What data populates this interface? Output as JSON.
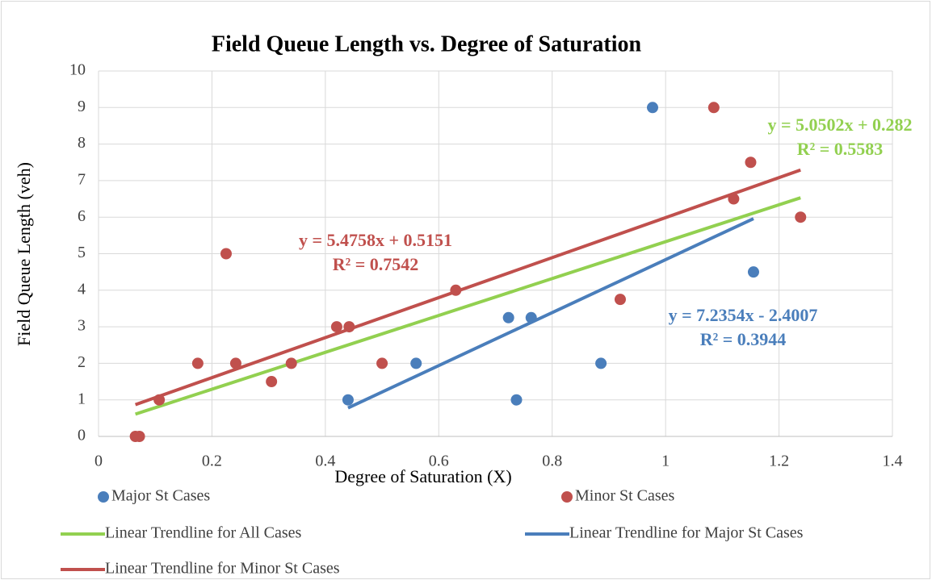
{
  "chart_data": {
    "type": "scatter",
    "title": "Field Queue Length vs. Degree of Saturation",
    "x_label": "Degree of Saturation (X)",
    "y_label": "Field Queue Length (veh)",
    "xlim": [
      0,
      1.4
    ],
    "ylim": [
      0,
      10
    ],
    "xticks": [
      0,
      0.2,
      0.4,
      0.6,
      0.8,
      1,
      1.2,
      1.4
    ],
    "yticks": [
      0,
      1,
      2,
      3,
      4,
      5,
      6,
      7,
      8,
      9,
      10
    ],
    "grid": true,
    "series": [
      {
        "name": "Major St Cases",
        "type": "scatter",
        "color": "#4a7ebb",
        "x": [
          0.44,
          0.56,
          0.723,
          0.763,
          0.737,
          0.886,
          0.977,
          1.155
        ],
        "values": [
          1,
          2,
          3.25,
          3.25,
          1,
          2,
          9,
          4.5
        ]
      },
      {
        "name": "Minor St Cases",
        "type": "scatter",
        "color": "#c0504d",
        "x": [
          0.065,
          0.072,
          0.107,
          0.175,
          0.225,
          0.242,
          0.305,
          0.34,
          0.42,
          0.442,
          0.5,
          0.63,
          0.92,
          1.085,
          1.12,
          1.15,
          1.238
        ],
        "values": [
          0,
          0,
          1,
          2,
          5,
          2,
          1.5,
          2,
          3,
          3,
          2,
          4,
          3.75,
          9,
          6.5,
          7.5,
          6
        ]
      },
      {
        "name": "Linear Trendline for All Cases",
        "type": "line",
        "color": "#92d050",
        "x": [
          0.065,
          1.238
        ],
        "values": [
          0.61,
          6.53
        ]
      },
      {
        "name": "Linear Trendline for Major St Cases",
        "type": "line",
        "color": "#4a7ebb",
        "x": [
          0.44,
          1.155
        ],
        "values": [
          0.78,
          5.96
        ]
      },
      {
        "name": "Linear Trendline for Minor St Cases",
        "type": "line",
        "color": "#c0504d",
        "x": [
          0.065,
          1.238
        ],
        "values": [
          0.87,
          7.29
        ]
      }
    ],
    "annotations": [
      {
        "lines": [
          "y = 5.0502x + 0.282",
          "R² = 0.5583"
        ],
        "color": "#92d050"
      },
      {
        "lines": [
          "y = 5.4758x + 0.5151",
          "R² = 0.7542"
        ],
        "color": "#c0504d"
      },
      {
        "lines": [
          "y = 7.2354x - 2.4007",
          "R² = 0.3944"
        ],
        "color": "#4a7ebb"
      }
    ]
  }
}
